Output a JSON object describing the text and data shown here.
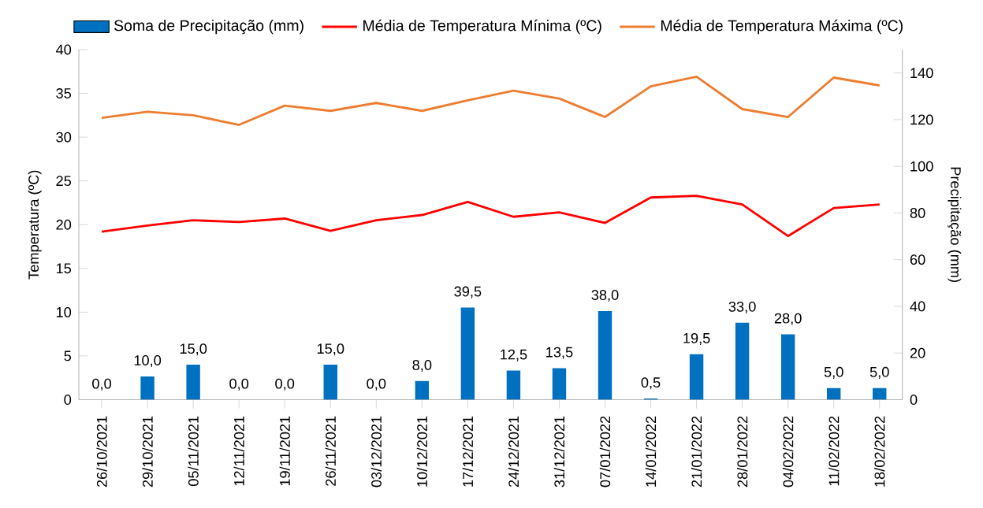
{
  "chart_data": {
    "type": "line",
    "categories": [
      "26/10/2021",
      "29/10/2021",
      "05/11/2021",
      "12/11/2021",
      "19/11/2021",
      "26/11/2021",
      "03/12/2021",
      "10/12/2021",
      "17/12/2021",
      "24/12/2021",
      "31/12/2021",
      "07/01/2022",
      "14/01/2022",
      "21/01/2022",
      "28/01/2022",
      "04/02/2022",
      "11/02/2022",
      "18/02/2022"
    ],
    "ylabel": "Temperatura (ºC)",
    "y2label": "Precipitação (mm)",
    "ylim": [
      0,
      40
    ],
    "yticks": [
      0,
      5,
      10,
      15,
      20,
      25,
      30,
      35,
      40
    ],
    "y2lim": [
      0,
      150
    ],
    "y2ticks": [
      0,
      20,
      40,
      60,
      80,
      100,
      120,
      140
    ],
    "legend": "top",
    "grid": false,
    "marker": "none",
    "series": [
      {
        "name": "Soma de Precipitação (mm)",
        "type": "bar",
        "axis": "y2",
        "color": "#0070c0",
        "values": [
          0,
          10,
          15,
          0,
          0,
          15,
          0,
          8,
          39.5,
          12.5,
          13.5,
          38,
          0.5,
          19.5,
          33,
          28,
          5,
          5
        ],
        "value_labels": [
          "0,0",
          "10,0",
          "15,0",
          "0,0",
          "0,0",
          "15,0",
          "0,0",
          "8,0",
          "39,5",
          "12,5",
          "13,5",
          "38,0",
          "0,5",
          "19,5",
          "33,0",
          "28,0",
          "5,0",
          "5,0"
        ]
      },
      {
        "name": "Média de Temperatura Mínima (ºC)",
        "color": "#ff0000",
        "values": [
          19.2,
          19.9,
          20.5,
          20.3,
          20.7,
          19.3,
          20.5,
          21.1,
          22.6,
          20.9,
          21.4,
          20.2,
          23.1,
          23.3,
          22.3,
          18.7,
          21.9,
          22.3
        ]
      },
      {
        "name": "Média de Temperatura Máxima (ºC)",
        "color": "#ed7d31",
        "values": [
          32.2,
          32.9,
          32.5,
          31.4,
          33.6,
          33.0,
          33.9,
          33.0,
          34.2,
          35.3,
          34.4,
          32.3,
          35.8,
          36.9,
          33.2,
          32.3,
          36.8,
          35.9
        ]
      }
    ]
  }
}
